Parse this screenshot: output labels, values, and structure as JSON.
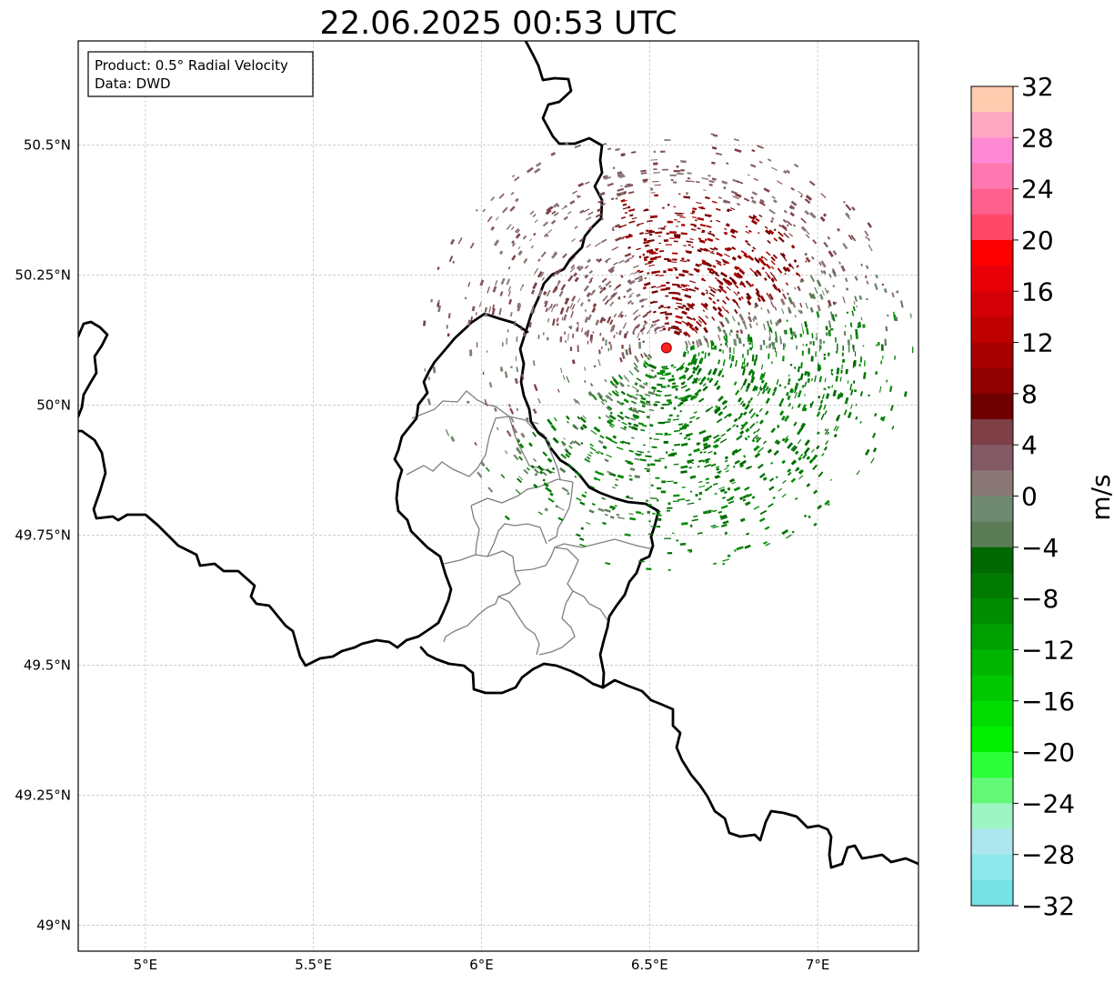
{
  "title": "22.06.2025 00:53 UTC",
  "info_box": {
    "product": "Product: 0.5° Radial Velocity",
    "data": "Data: DWD"
  },
  "map": {
    "lon_range": [
      4.8,
      7.3
    ],
    "lat_range": [
      48.95,
      50.7
    ],
    "lon_ticks": [
      {
        "value": 5.0,
        "label": "5°E"
      },
      {
        "value": 5.5,
        "label": "5.5°E"
      },
      {
        "value": 6.0,
        "label": "6°E"
      },
      {
        "value": 6.5,
        "label": "6.5°E"
      },
      {
        "value": 7.0,
        "label": "7°E"
      }
    ],
    "lat_ticks": [
      {
        "value": 50.5,
        "label": "50.5°N"
      },
      {
        "value": 50.25,
        "label": "50.25°N"
      },
      {
        "value": 50.0,
        "label": "50°N"
      },
      {
        "value": 49.75,
        "label": "49.75°N"
      },
      {
        "value": 49.5,
        "label": "49.5°N"
      },
      {
        "value": 49.25,
        "label": "49.25°N"
      },
      {
        "value": 49.0,
        "label": "49°N"
      }
    ],
    "grid": true,
    "radar_site": {
      "lon": 6.55,
      "lat": 50.11,
      "color": "#ff2020"
    }
  },
  "colorbar": {
    "unit": "m/s",
    "range": [
      -32,
      32
    ],
    "step": 4,
    "tick_labels": [
      "32",
      "28",
      "24",
      "20",
      "16",
      "12",
      "8",
      "4",
      "0",
      "−4",
      "−8",
      "−12",
      "−16",
      "−20",
      "−24",
      "−28",
      "−32"
    ],
    "colors_top_to_bottom": [
      "#ffccb0",
      "#ffa8c4",
      "#ff88d4",
      "#ff78b0",
      "#ff6090",
      "#ff4868",
      "#ff0000",
      "#e80008",
      "#d40008",
      "#c00000",
      "#a80000",
      "#900000",
      "#6e0000",
      "#7e4046",
      "#845a66",
      "#8a7876",
      "#6f8a70",
      "#5c7c58",
      "#006800",
      "#007a00",
      "#008c00",
      "#00a000",
      "#00b400",
      "#00c800",
      "#00dc00",
      "#00f000",
      "#2cff3a",
      "#64f878",
      "#9ef4c4",
      "#aee6f0",
      "#8ce8ec",
      "#76e2e6"
    ]
  }
}
